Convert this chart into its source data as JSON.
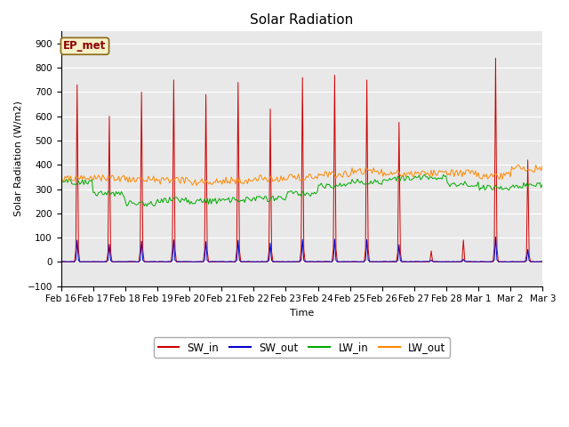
{
  "title": "Solar Radiation",
  "ylabel": "Solar Radiation (W/m2)",
  "xlabel": "Time",
  "ylim": [
    -100,
    950
  ],
  "yticks": [
    -100,
    0,
    100,
    200,
    300,
    400,
    500,
    600,
    700,
    800,
    900
  ],
  "legend_label": "EP_met",
  "legend_box_color": "#f5f0c8",
  "legend_box_edge": "#8B6914",
  "series_colors": {
    "SW_in": "#cc0000",
    "SW_out": "#0000cc",
    "LW_in": "#00aa00",
    "LW_out": "#ff8800"
  },
  "background_color": "#e8e8e8",
  "n_days": 15,
  "x_tick_labels": [
    "Feb 16",
    "Feb 17",
    "Feb 18",
    "Feb 19",
    "Feb 20",
    "Feb 21",
    "Feb 22",
    "Feb 23",
    "Feb 24",
    "Feb 25",
    "Feb 26",
    "Feb 27",
    "Feb 28",
    "Mar 1",
    "Mar 2",
    "Mar 3"
  ],
  "title_fontsize": 11,
  "axis_fontsize": 8,
  "tick_fontsize": 7.5
}
